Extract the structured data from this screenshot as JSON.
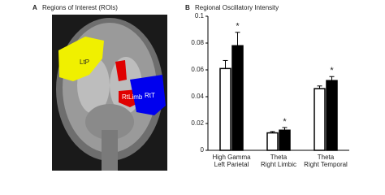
{
  "panel_a": {
    "label": "A",
    "title": "Regions of Interest (ROIs)",
    "roi_labels": [
      "LtP",
      "RtT",
      "RtLimb"
    ]
  },
  "chart_data": {
    "type": "bar",
    "label": "B",
    "title": "Regional Oscillatory Intensity",
    "categories": [
      "High Gamma\nLeft Parietal",
      "Theta\nRight Limbic",
      "Theta\nRight Temporal"
    ],
    "series": [
      {
        "color": "#ffffff",
        "values": [
          0.061,
          0.013,
          0.046
        ],
        "errors": [
          0.006,
          0.001,
          0.002
        ]
      },
      {
        "color": "#000000",
        "values": [
          0.078,
          0.015,
          0.052
        ],
        "errors": [
          0.01,
          0.002,
          0.003
        ]
      }
    ],
    "significance": [
      "*",
      "*",
      "*"
    ],
    "ylim": [
      0,
      0.1
    ],
    "yticks": [
      0,
      0.02,
      0.04,
      0.06,
      0.08,
      0.1
    ],
    "grid": false
  }
}
